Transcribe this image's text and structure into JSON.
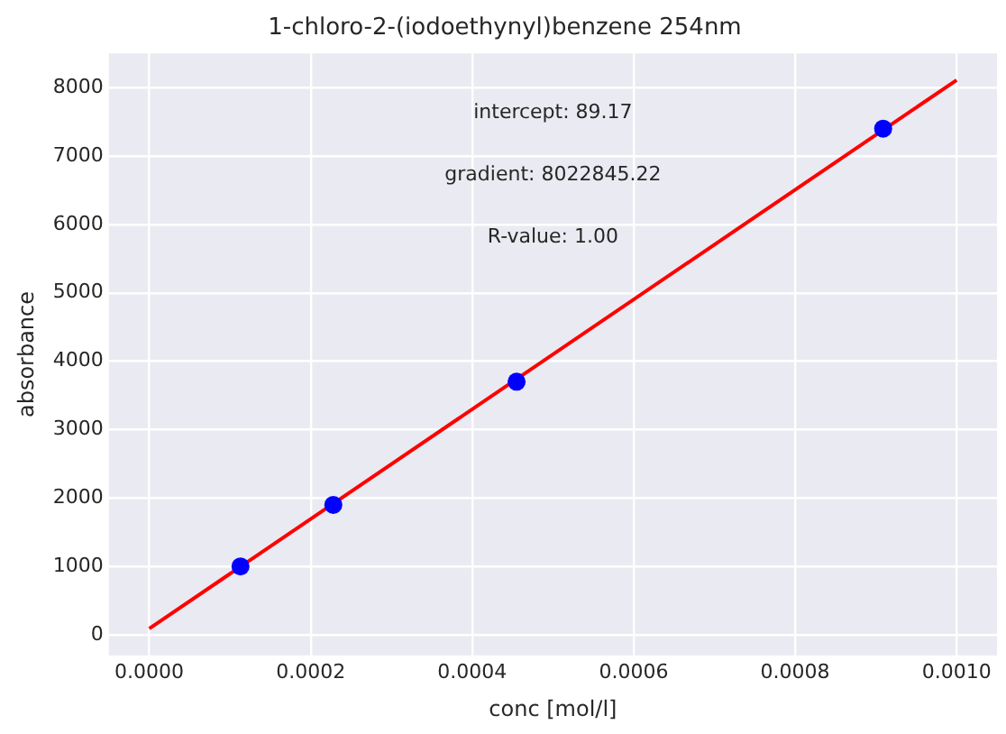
{
  "chart_data": {
    "type": "scatter",
    "title": "1-chloro-2-(iodoethynyl)benzene 254nm",
    "xlabel": "conc [mol/l]",
    "ylabel": "absorbance",
    "series": [
      {
        "color": "#0000ff",
        "x": [
          0.000113,
          0.000228,
          0.000455,
          0.000909
        ],
        "values": [
          1000,
          1900,
          3700,
          7400
        ],
        "marker": "circle"
      },
      {
        "type": "line",
        "color": "#ff0000",
        "x": [
          0,
          0.001
        ],
        "values": [
          90,
          8110
        ],
        "marker": "none"
      }
    ],
    "annotations": [
      "intercept: 89.17",
      "gradient: 8022845.22",
      "R-value: 1.00"
    ],
    "xlim": [
      -5e-05,
      0.00105
    ],
    "xticks": [
      {
        "value": 0,
        "label": "0.0000"
      },
      {
        "value": 0.0002,
        "label": "0.0002"
      },
      {
        "value": 0.0004,
        "label": "0.0004"
      },
      {
        "value": 0.0006,
        "label": "0.0006"
      },
      {
        "value": 0.0008,
        "label": "0.0008"
      },
      {
        "value": 0.001,
        "label": "0.0010"
      }
    ],
    "ylim": [
      -300,
      8500
    ],
    "yticks": [
      0,
      1000,
      2000,
      3000,
      4000,
      5000,
      6000,
      7000,
      8000
    ],
    "grid": true,
    "legend": false
  }
}
